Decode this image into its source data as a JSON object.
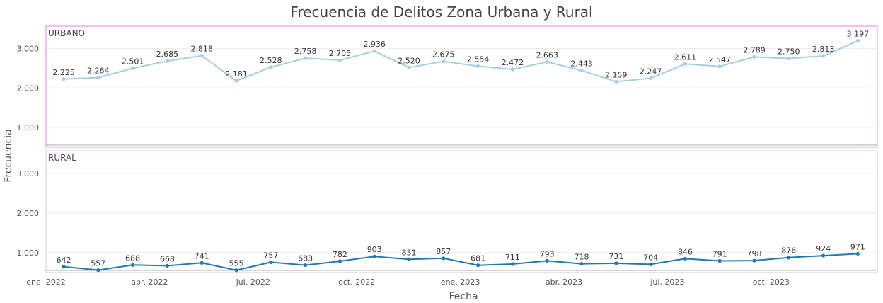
{
  "chart_data": {
    "type": "line",
    "title": "Frecuencia de Delitos Zona Urbana y Rural",
    "xlabel": "Fecha",
    "ylabel": "Frecuencia",
    "x": [
      "2022-01",
      "2022-02",
      "2022-03",
      "2022-04",
      "2022-05",
      "2022-06",
      "2022-07",
      "2022-08",
      "2022-09",
      "2022-10",
      "2022-11",
      "2022-12",
      "2023-01",
      "2023-02",
      "2023-03",
      "2023-04",
      "2023-05",
      "2023-06",
      "2023-07",
      "2023-08",
      "2023-09",
      "2023-10",
      "2023-11",
      "2023-12"
    ],
    "x_ticks": [
      {
        "x": "2022-01",
        "label": "ene. 2022"
      },
      {
        "x": "2022-04",
        "label": "abr. 2022"
      },
      {
        "x": "2022-07",
        "label": "jul. 2022"
      },
      {
        "x": "2022-10",
        "label": "oct. 2022"
      },
      {
        "x": "2023-01",
        "label": "ene. 2023"
      },
      {
        "x": "2023-04",
        "label": "abr. 2023"
      },
      {
        "x": "2023-07",
        "label": "jul. 2023"
      },
      {
        "x": "2023-10",
        "label": "oct. 2023"
      }
    ],
    "y_ticks": [
      {
        "value": 1000,
        "label": "1.000"
      },
      {
        "value": 2000,
        "label": "2.000"
      },
      {
        "value": 3000,
        "label": "3.000"
      }
    ],
    "ylim": [
      550,
      3550
    ],
    "grid": true,
    "panels": [
      {
        "name": "URBANO",
        "color": "#a6cee3",
        "border_color": "#ee82ee",
        "values": [
          2225,
          2264,
          2501,
          2685,
          2818,
          2181,
          2528,
          2758,
          2705,
          2936,
          2520,
          2675,
          2554,
          2472,
          2663,
          2443,
          2159,
          2247,
          2611,
          2547,
          2789,
          2750,
          2813,
          3197
        ],
        "labels": [
          "2.225",
          "2.264",
          "2.501",
          "2.685",
          "2.818",
          "2.181",
          "2.528",
          "2.758",
          "2.705",
          "2.936",
          "2.520",
          "2.675",
          "2.554",
          "2.472",
          "2.663",
          "2.443",
          "2.159",
          "2.247",
          "2.611",
          "2.547",
          "2.789",
          "2.750",
          "2.813",
          "3.197"
        ]
      },
      {
        "name": "RURAL",
        "color": "#1f78b4",
        "border_color": "#cccccc",
        "values": [
          642,
          557,
          688,
          668,
          741,
          555,
          757,
          683,
          782,
          903,
          831,
          857,
          681,
          711,
          793,
          718,
          731,
          704,
          846,
          791,
          798,
          876,
          924,
          971
        ],
        "labels": [
          "642",
          "557",
          "688",
          "668",
          "741",
          "555",
          "757",
          "683",
          "782",
          "903",
          "831",
          "857",
          "681",
          "711",
          "793",
          "718",
          "731",
          "704",
          "846",
          "791",
          "798",
          "876",
          "924",
          "971"
        ]
      }
    ]
  }
}
